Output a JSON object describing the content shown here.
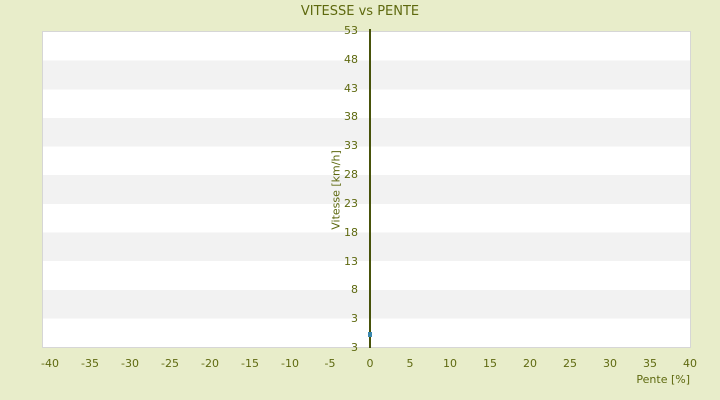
{
  "chart_data": {
    "type": "scatter",
    "title": "VITESSE vs PENTE",
    "xlabel": "Pente [%]",
    "ylabel": "Vitesse [km/h]",
    "x_ticks": [
      -40,
      -35,
      -30,
      -25,
      -20,
      -15,
      -10,
      -5,
      0,
      5,
      10,
      15,
      20,
      25,
      30,
      35,
      40
    ],
    "y_tick_labels": [
      "53",
      "48",
      "43",
      "38",
      "33",
      "28",
      "23",
      "18",
      "13",
      "8",
      "3",
      "3"
    ],
    "xlim": [
      -41,
      41
    ],
    "ylim": [
      -2,
      53
    ],
    "points": [
      {
        "x": 0,
        "y": 0.3
      }
    ],
    "grid": "horizontal alternating bands",
    "legend": "none",
    "colors": {
      "page_background": "#e8edca",
      "text": "#5e690f",
      "axis_line": "#47520a",
      "band_light": "#ffffff",
      "band_dark": "#f2f2f2",
      "plot_border": "#d6d6d6",
      "point": "#3a87ad"
    }
  }
}
